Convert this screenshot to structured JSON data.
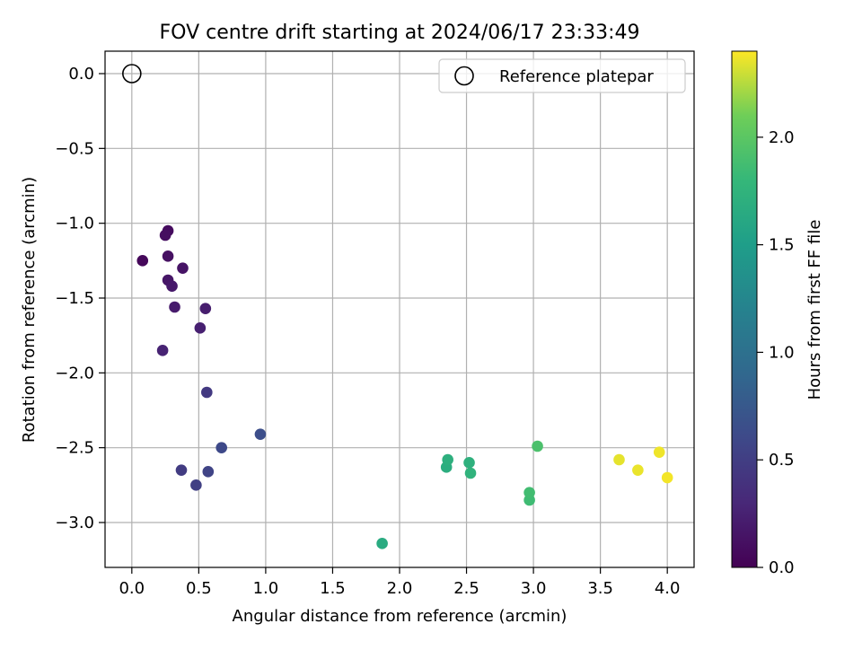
{
  "chart_data": {
    "type": "scatter",
    "title": "FOV centre drift starting at 2024/06/17 23:33:49",
    "xlabel": "Angular distance from reference (arcmin)",
    "ylabel": "Rotation from reference (arcmin)",
    "xlim": [
      -0.2,
      4.2
    ],
    "ylim": [
      -3.3,
      0.15
    ],
    "xticks": [
      0.0,
      0.5,
      1.0,
      1.5,
      2.0,
      2.5,
      3.0,
      3.5,
      4.0
    ],
    "xtick_labels": [
      "0.0",
      "0.5",
      "1.0",
      "1.5",
      "2.0",
      "2.5",
      "3.0",
      "3.5",
      "4.0"
    ],
    "yticks": [
      0.0,
      -0.5,
      -1.0,
      -1.5,
      -2.0,
      -2.5,
      -3.0
    ],
    "ytick_labels": [
      "0.0",
      "−0.5",
      "−1.0",
      "−1.5",
      "−2.0",
      "−2.5",
      "−3.0"
    ],
    "grid": true,
    "legend": {
      "entries": [
        "Reference platepar"
      ],
      "placement": "top-right"
    },
    "reference_point": {
      "x": 0.0,
      "y": 0.0,
      "marker": "open-circle"
    },
    "colorbar": {
      "label": "Hours from first FF file",
      "colormap": "viridis",
      "range": [
        0.0,
        2.4
      ],
      "ticks": [
        0.0,
        0.5,
        1.0,
        1.5,
        2.0
      ],
      "tick_labels": [
        "0.0",
        "0.5",
        "1.0",
        "1.5",
        "2.0"
      ]
    },
    "points": [
      {
        "x": 0.08,
        "y": -1.25,
        "hours": 0.05
      },
      {
        "x": 0.27,
        "y": -1.05,
        "hours": 0.08
      },
      {
        "x": 0.25,
        "y": -1.08,
        "hours": 0.1
      },
      {
        "x": 0.27,
        "y": -1.22,
        "hours": 0.12
      },
      {
        "x": 0.38,
        "y": -1.3,
        "hours": 0.14
      },
      {
        "x": 0.27,
        "y": -1.38,
        "hours": 0.16
      },
      {
        "x": 0.3,
        "y": -1.42,
        "hours": 0.18
      },
      {
        "x": 0.32,
        "y": -1.56,
        "hours": 0.2
      },
      {
        "x": 0.55,
        "y": -1.57,
        "hours": 0.22
      },
      {
        "x": 0.51,
        "y": -1.7,
        "hours": 0.24
      },
      {
        "x": 0.23,
        "y": -1.85,
        "hours": 0.26
      },
      {
        "x": 0.56,
        "y": -2.13,
        "hours": 0.45
      },
      {
        "x": 0.37,
        "y": -2.65,
        "hours": 0.48
      },
      {
        "x": 0.48,
        "y": -2.75,
        "hours": 0.52
      },
      {
        "x": 0.57,
        "y": -2.66,
        "hours": 0.55
      },
      {
        "x": 0.67,
        "y": -2.5,
        "hours": 0.6
      },
      {
        "x": 0.96,
        "y": -2.41,
        "hours": 0.65
      },
      {
        "x": 1.87,
        "y": -3.14,
        "hours": 1.65
      },
      {
        "x": 2.35,
        "y": -2.63,
        "hours": 1.68
      },
      {
        "x": 2.36,
        "y": -2.58,
        "hours": 1.7
      },
      {
        "x": 2.52,
        "y": -2.6,
        "hours": 1.72
      },
      {
        "x": 2.53,
        "y": -2.67,
        "hours": 1.74
      },
      {
        "x": 2.97,
        "y": -2.85,
        "hours": 1.85
      },
      {
        "x": 2.97,
        "y": -2.8,
        "hours": 1.87
      },
      {
        "x": 3.03,
        "y": -2.49,
        "hours": 1.92
      },
      {
        "x": 3.64,
        "y": -2.58,
        "hours": 2.35
      },
      {
        "x": 3.78,
        "y": -2.65,
        "hours": 2.36
      },
      {
        "x": 3.94,
        "y": -2.53,
        "hours": 2.37
      },
      {
        "x": 4.0,
        "y": -2.7,
        "hours": 2.38
      }
    ]
  }
}
